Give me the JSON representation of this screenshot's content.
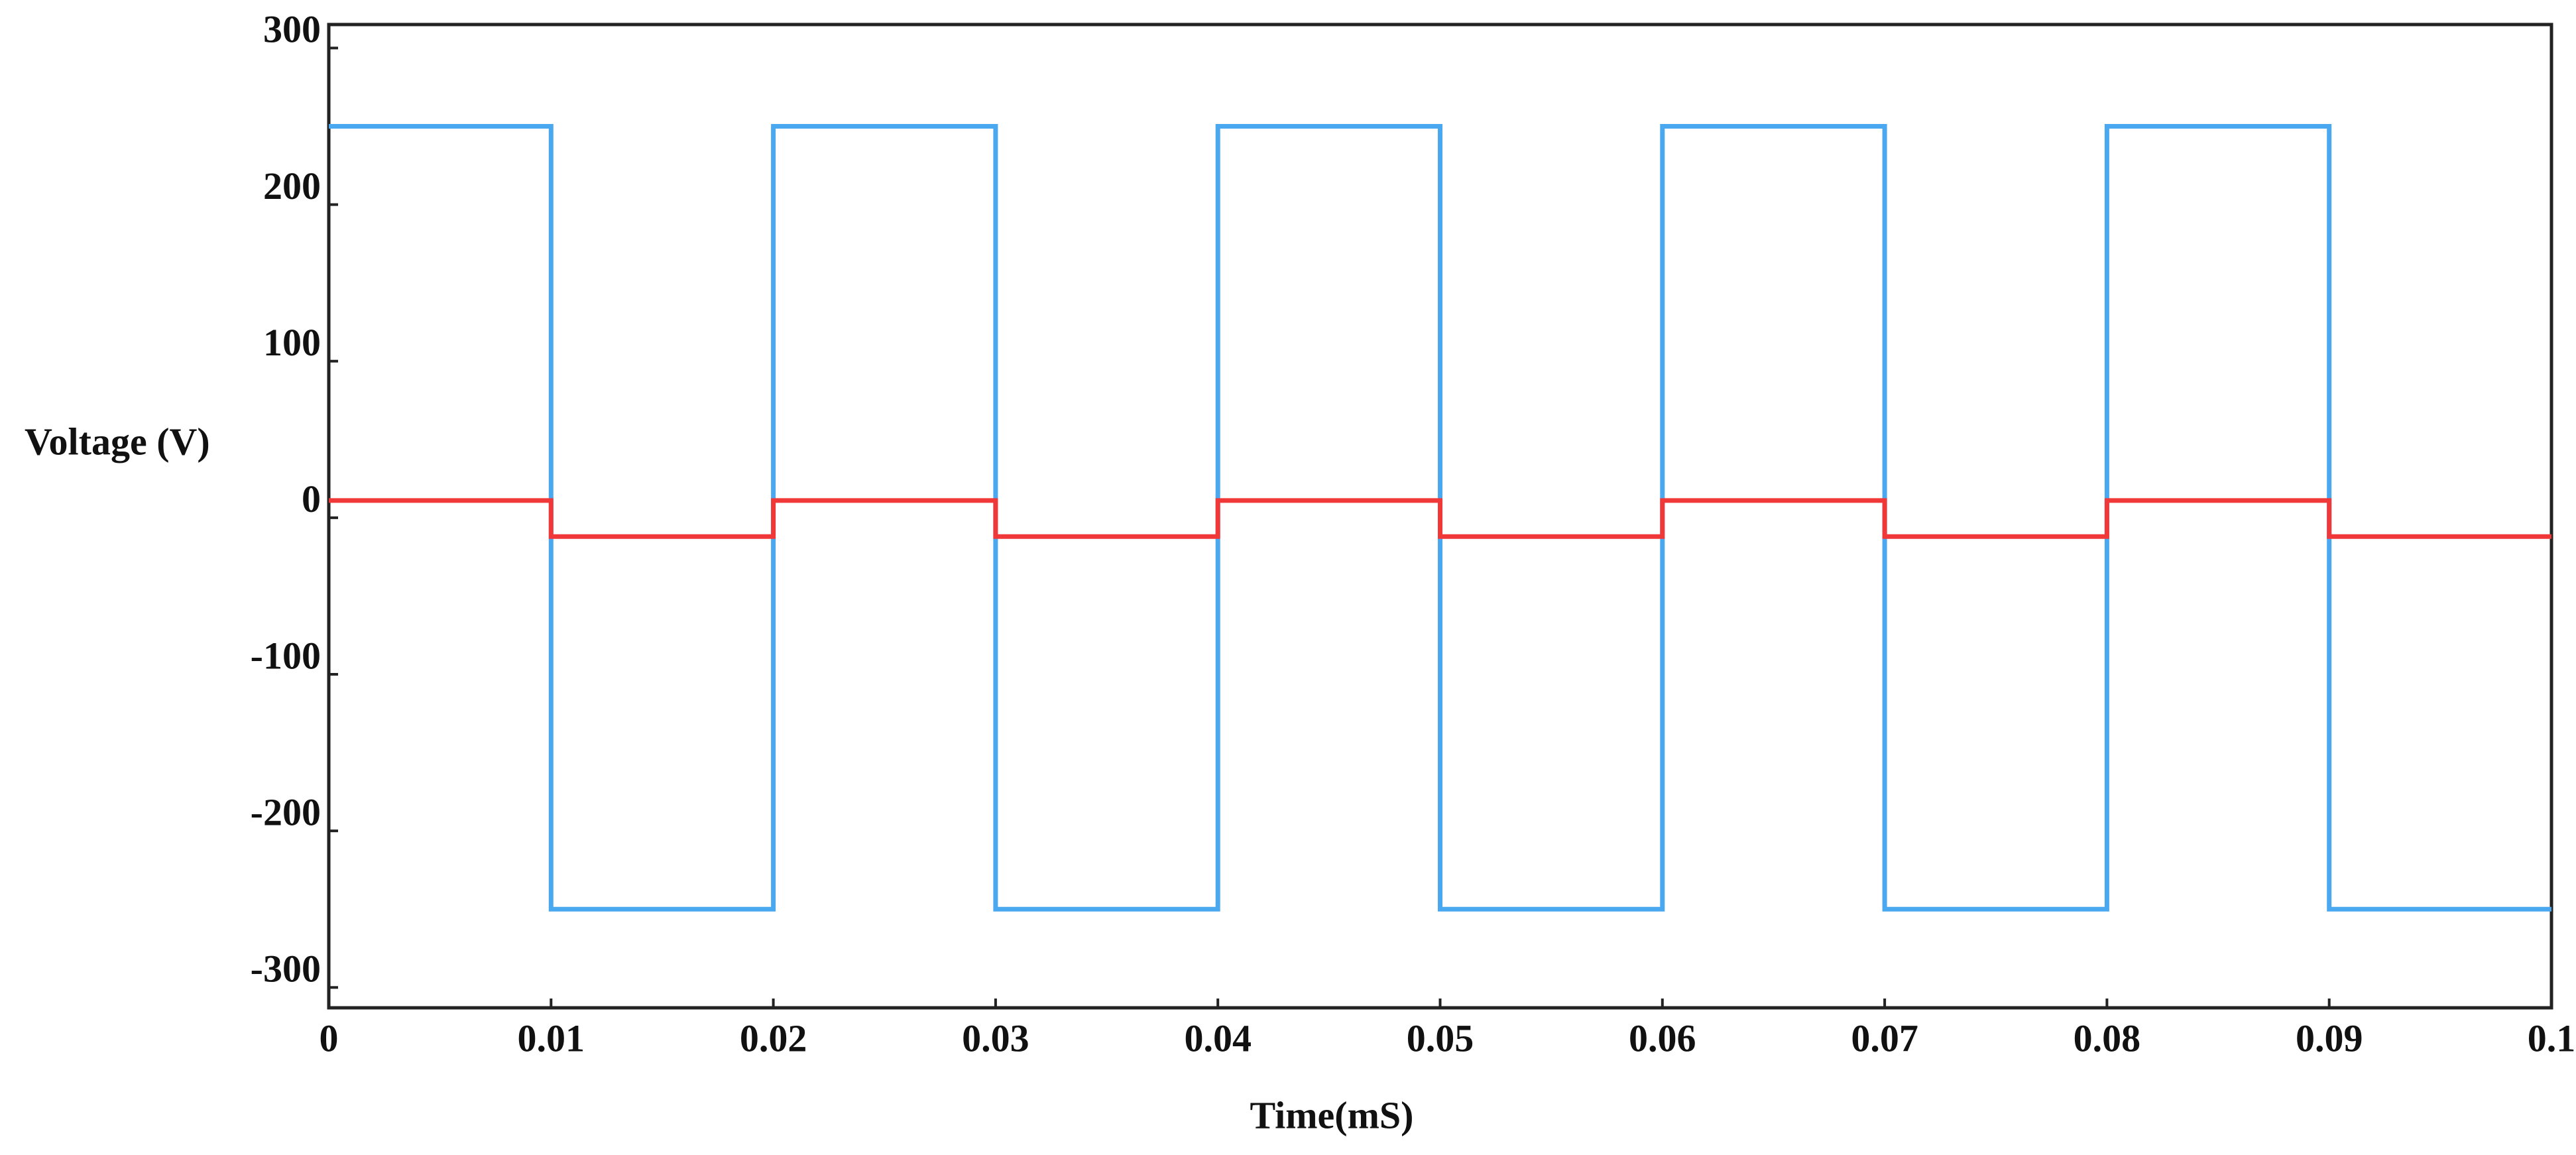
{
  "chart_data": {
    "type": "line",
    "x_label": "Time(mS)",
    "y_label": "Voltage (V)",
    "x": [
      0,
      0.01,
      0.01,
      0.02,
      0.02,
      0.03,
      0.03,
      0.04,
      0.04,
      0.05,
      0.05,
      0.06,
      0.06,
      0.07,
      0.07,
      0.08,
      0.08,
      0.09,
      0.09,
      0.1
    ],
    "series": [
      {
        "color": "#4aa8f0",
        "values": [
          250,
          250,
          -250,
          -250,
          250,
          250,
          -250,
          -250,
          250,
          250,
          -250,
          -250,
          250,
          250,
          -250,
          -250,
          250,
          250,
          -250,
          -250
        ]
      },
      {
        "color": "#f03838",
        "values": [
          11,
          11,
          -12,
          -12,
          11,
          11,
          -12,
          -12,
          11,
          11,
          -12,
          -12,
          11,
          11,
          -12,
          -12,
          11,
          11,
          -12,
          -12
        ]
      }
    ],
    "xlim": [
      0,
      0.1
    ],
    "xticks": [
      0,
      0.01,
      0.02,
      0.03,
      0.04,
      0.05,
      0.06,
      0.07,
      0.08,
      0.09,
      0.1
    ],
    "ylim": [
      -313,
      315
    ],
    "yticks": [
      -300,
      -200,
      -100,
      0,
      100,
      200,
      300
    ]
  }
}
